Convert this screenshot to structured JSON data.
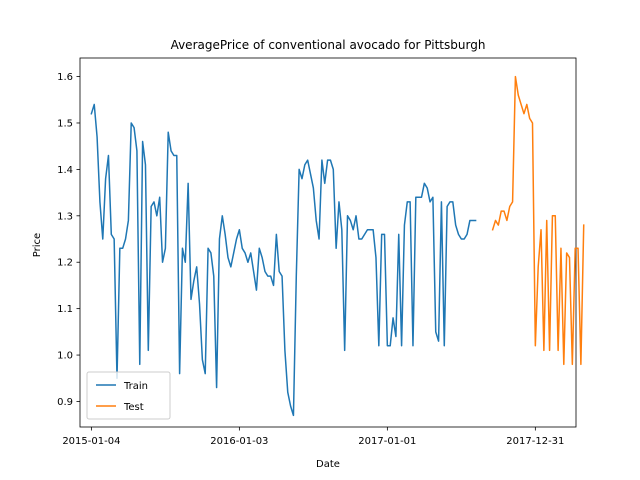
{
  "chart_data": {
    "type": "line",
    "title": "AveragePrice of conventional avocado for Pittsburgh",
    "xlabel": "Date",
    "ylabel": "Price",
    "xlim": [
      "2014-12-07",
      "2018-04-10"
    ],
    "ylim": [
      0.845,
      1.64
    ],
    "x_ticks": [
      "2015-01-04",
      "2016-01-03",
      "2017-01-01",
      "2017-12-31"
    ],
    "y_ticks": [
      0.9,
      1.0,
      1.1,
      1.2,
      1.3,
      1.4,
      1.5,
      1.6
    ],
    "legend_position": "lower-left",
    "grid": false,
    "colors": {
      "Train": "#1f77b4",
      "Test": "#ff7f0e"
    },
    "series": [
      {
        "name": "Train",
        "start_date": "2015-01-04",
        "interval_days": 7,
        "values": [
          1.52,
          1.54,
          1.47,
          1.33,
          1.25,
          1.38,
          1.43,
          1.26,
          1.25,
          0.95,
          1.23,
          1.23,
          1.25,
          1.29,
          1.5,
          1.49,
          1.44,
          0.98,
          1.46,
          1.41,
          1.01,
          1.32,
          1.33,
          1.3,
          1.34,
          1.2,
          1.23,
          1.48,
          1.44,
          1.43,
          1.43,
          0.96,
          1.23,
          1.2,
          1.37,
          1.12,
          1.16,
          1.19,
          1.11,
          0.99,
          0.96,
          1.23,
          1.22,
          1.17,
          0.93,
          1.25,
          1.3,
          1.26,
          1.21,
          1.19,
          1.22,
          1.25,
          1.27,
          1.23,
          1.22,
          1.2,
          1.22,
          1.18,
          1.14,
          1.23,
          1.21,
          1.18,
          1.17,
          1.17,
          1.15,
          1.26,
          1.18,
          1.17,
          1.01,
          0.92,
          0.89,
          0.87,
          1.17,
          1.4,
          1.38,
          1.41,
          1.42,
          1.39,
          1.36,
          1.29,
          1.25,
          1.42,
          1.37,
          1.42,
          1.42,
          1.4,
          1.23,
          1.33,
          1.27,
          1.01,
          1.3,
          1.29,
          1.27,
          1.3,
          1.25,
          1.25,
          1.26,
          1.27,
          1.27,
          1.27,
          1.21,
          1.02,
          1.26,
          1.26,
          1.02,
          1.02,
          1.08,
          1.04,
          1.26,
          1.02,
          1.28,
          1.33,
          1.33,
          1.02,
          1.34,
          1.34,
          1.34,
          1.37,
          1.36,
          1.33,
          1.34,
          1.05,
          1.03,
          1.33,
          1.02,
          1.32,
          1.33,
          1.33,
          1.28,
          1.26,
          1.25,
          1.25,
          1.26,
          1.29,
          1.29,
          1.29
        ]
      },
      {
        "name": "Test",
        "start_date": "2017-09-17",
        "interval_days": 7,
        "values": [
          1.27,
          1.29,
          1.28,
          1.31,
          1.31,
          1.29,
          1.32,
          1.33,
          1.6,
          1.56,
          1.54,
          1.52,
          1.54,
          1.51,
          1.5,
          1.02,
          1.19,
          1.27,
          1.01,
          1.29,
          1.01,
          1.3,
          1.3,
          1.01,
          1.23,
          0.98,
          1.22,
          1.21,
          0.98,
          1.23,
          1.23,
          0.98,
          1.28
        ]
      }
    ]
  }
}
